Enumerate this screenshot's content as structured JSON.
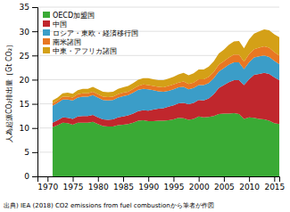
{
  "chart_data": {
    "type": "area",
    "stacked": true,
    "ylabel": "人為起源CO₂排出量［Gt CO₂］",
    "caption": "出典) IEA (2018) CO2 emissions from fuel combustionから筆者が作図",
    "xlim": [
      1968,
      2016
    ],
    "ylim": [
      0,
      35
    ],
    "xticks": [
      1970,
      1975,
      1980,
      1985,
      1990,
      1995,
      2000,
      2005,
      2010,
      2015
    ],
    "yticks": [
      0,
      5,
      10,
      15,
      20,
      25,
      30,
      35
    ],
    "grid": true,
    "legend": "upper left",
    "x": [
      1971,
      1972,
      1973,
      1974,
      1975,
      1976,
      1977,
      1978,
      1979,
      1980,
      1981,
      1982,
      1983,
      1984,
      1985,
      1986,
      1987,
      1988,
      1989,
      1990,
      1991,
      1992,
      1993,
      1994,
      1995,
      1996,
      1997,
      1998,
      1999,
      2000,
      2001,
      2002,
      2003,
      2004,
      2005,
      2006,
      2007,
      2008,
      2009,
      2010,
      2011,
      2012,
      2013,
      2014,
      2015,
      2016
    ],
    "series": [
      {
        "name": "OECD加盟国",
        "color": "#3aaa35",
        "values": [
          10.2,
          10.6,
          11.1,
          11.0,
          10.7,
          11.1,
          11.1,
          11.1,
          11.3,
          10.8,
          10.4,
          10.3,
          10.3,
          10.6,
          10.7,
          10.8,
          11.1,
          11.5,
          11.6,
          11.4,
          11.4,
          11.5,
          11.5,
          11.6,
          11.8,
          12.1,
          12.0,
          11.7,
          11.9,
          12.4,
          12.2,
          12.3,
          12.5,
          12.9,
          13.0,
          13.0,
          13.1,
          12.9,
          11.9,
          12.2,
          12.1,
          11.9,
          11.8,
          11.5,
          11.0,
          10.8
        ]
      },
      {
        "name": "中国",
        "color": "#c0272d",
        "values": [
          0.9,
          1.0,
          1.1,
          1.1,
          1.2,
          1.3,
          1.4,
          1.4,
          1.4,
          1.4,
          1.4,
          1.4,
          1.5,
          1.6,
          1.7,
          1.8,
          1.9,
          2.0,
          2.1,
          2.2,
          2.4,
          2.5,
          2.6,
          2.8,
          2.9,
          3.0,
          3.2,
          3.2,
          3.3,
          3.4,
          3.5,
          3.8,
          4.5,
          5.4,
          5.9,
          6.5,
          6.8,
          7.0,
          7.0,
          7.9,
          8.9,
          9.3,
          9.6,
          9.7,
          9.5,
          9.1
        ]
      },
      {
        "name": "ロシア・東欧・経済移行国",
        "color": "#3b9dc8",
        "values": [
          3.5,
          3.6,
          3.7,
          3.8,
          3.8,
          3.9,
          4.0,
          4.0,
          4.1,
          4.1,
          4.0,
          4.0,
          4.0,
          4.1,
          4.2,
          4.2,
          4.3,
          4.4,
          4.4,
          4.4,
          4.0,
          3.6,
          3.4,
          3.3,
          3.3,
          3.3,
          3.3,
          3.1,
          3.1,
          3.1,
          3.2,
          3.2,
          3.3,
          3.4,
          3.5,
          3.6,
          3.7,
          3.7,
          3.3,
          3.5,
          3.6,
          3.6,
          3.6,
          3.5,
          3.4,
          3.3
        ]
      },
      {
        "name": "南米諸国",
        "color": "#e87722",
        "values": [
          0.5,
          0.5,
          0.6,
          0.6,
          0.6,
          0.7,
          0.7,
          0.7,
          0.7,
          0.7,
          0.7,
          0.7,
          0.7,
          0.7,
          0.7,
          0.7,
          0.8,
          0.8,
          0.9,
          0.9,
          0.9,
          0.9,
          0.9,
          1.0,
          1.0,
          1.0,
          1.1,
          1.1,
          1.1,
          1.2,
          1.2,
          1.3,
          1.3,
          1.4,
          1.4,
          1.5,
          1.6,
          1.6,
          1.5,
          1.7,
          1.7,
          1.8,
          1.9,
          1.9,
          1.8,
          1.8
        ]
      },
      {
        "name": "中東・アフリカ諸国",
        "color": "#d4a017",
        "values": [
          0.6,
          0.6,
          0.7,
          0.8,
          0.8,
          0.8,
          0.9,
          0.9,
          1.0,
          1.0,
          1.0,
          1.0,
          1.0,
          1.1,
          1.1,
          1.2,
          1.2,
          1.3,
          1.3,
          1.4,
          1.4,
          1.4,
          1.5,
          1.5,
          1.6,
          1.7,
          1.8,
          1.8,
          1.9,
          2.0,
          2.0,
          2.1,
          2.2,
          2.3,
          2.4,
          2.6,
          2.7,
          2.8,
          2.8,
          3.0,
          3.2,
          3.4,
          3.5,
          3.6,
          3.7,
          3.8
        ]
      }
    ]
  }
}
